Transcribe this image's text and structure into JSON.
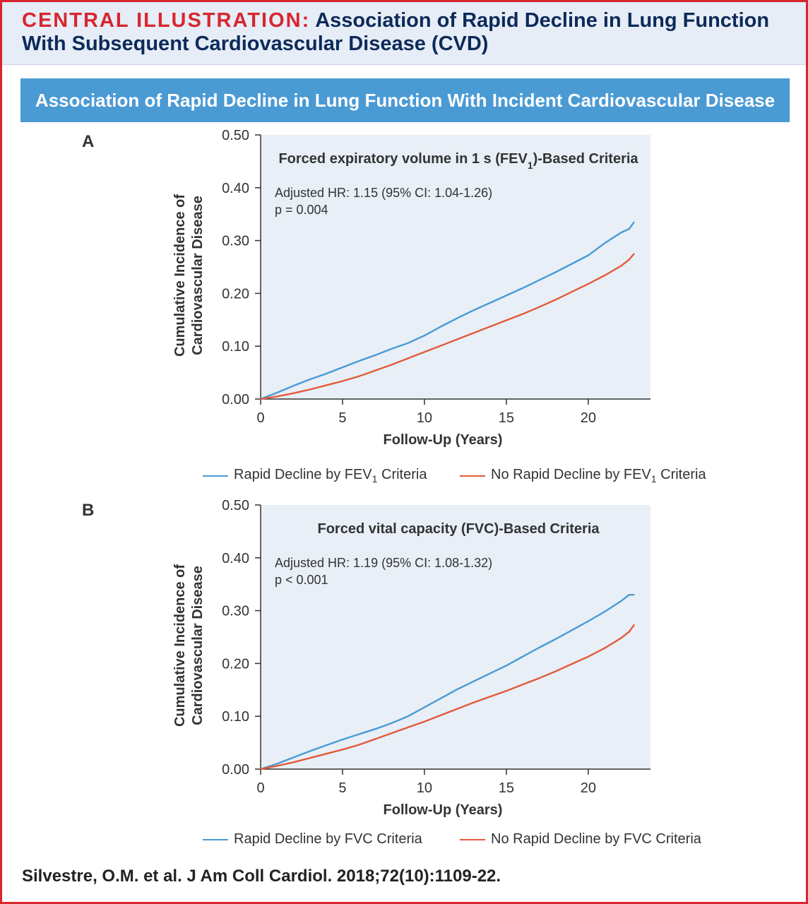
{
  "header": {
    "label": "CENTRAL ILLUSTRATION:",
    "title": "Association of Rapid Decline in Lung Function With Subsequent Cardiovascular Disease (CVD)"
  },
  "banner": "Association of Rapid Decline in Lung Function With Incident Cardiovascular Disease",
  "citation": "Silvestre, O.M. et al. J Am Coll Cardiol. 2018;72(10):1109-22.",
  "colors": {
    "rapid": "#4a9ad4",
    "noRapid": "#e35a3a",
    "plotBg": "#e8eff7"
  },
  "chart_data": [
    {
      "panel": "A",
      "type": "line",
      "title": "Forced expiratory volume in 1 s (FEV1)-Based Criteria",
      "annotation": [
        "Adjusted HR: 1.15 (95% CI: 1.04-1.26)",
        "p = 0.004"
      ],
      "xlabel": "Follow-Up (Years)",
      "ylabel": [
        "Cumulative Incidence of",
        "Cardiovascular Disease"
      ],
      "xlim": [
        0,
        23.8
      ],
      "ylim": [
        0,
        0.5
      ],
      "xticks": [
        0,
        5,
        10,
        15,
        20
      ],
      "yticks": [
        "0.00",
        "0.10",
        "0.20",
        "0.30",
        "0.40",
        "0.50"
      ],
      "legend_position": "bottom",
      "series": [
        {
          "name": "Rapid Decline by FEV1 Criteria",
          "x": [
            0,
            1,
            2,
            3,
            4,
            5,
            6,
            7,
            8,
            9,
            10,
            11,
            12,
            13,
            14,
            15,
            16,
            17,
            18,
            19,
            20,
            21,
            22,
            22.5,
            22.8
          ],
          "y": [
            0,
            0.012,
            0.025,
            0.037,
            0.048,
            0.06,
            0.072,
            0.083,
            0.095,
            0.106,
            0.12,
            0.137,
            0.153,
            0.168,
            0.182,
            0.196,
            0.21,
            0.225,
            0.24,
            0.256,
            0.272,
            0.295,
            0.315,
            0.322,
            0.335
          ]
        },
        {
          "name": "No Rapid Decline by FEV1 Criteria",
          "x": [
            0,
            1,
            2,
            3,
            4,
            5,
            6,
            7,
            8,
            9,
            10,
            11,
            12,
            13,
            14,
            15,
            16,
            17,
            18,
            19,
            20,
            21,
            22,
            22.5,
            22.8
          ],
          "y": [
            0,
            0.005,
            0.011,
            0.018,
            0.026,
            0.034,
            0.043,
            0.054,
            0.065,
            0.077,
            0.089,
            0.101,
            0.113,
            0.125,
            0.137,
            0.149,
            0.161,
            0.174,
            0.188,
            0.203,
            0.218,
            0.234,
            0.252,
            0.264,
            0.275
          ]
        }
      ]
    },
    {
      "panel": "B",
      "type": "line",
      "title": "Forced vital capacity (FVC)-Based Criteria",
      "annotation": [
        "Adjusted HR: 1.19 (95% CI: 1.08-1.32)",
        "p < 0.001"
      ],
      "xlabel": "Follow-Up (Years)",
      "ylabel": [
        "Cumulative Incidence of",
        "Cardiovascular Disease"
      ],
      "xlim": [
        0,
        23.8
      ],
      "ylim": [
        0,
        0.5
      ],
      "xticks": [
        0,
        5,
        10,
        15,
        20
      ],
      "yticks": [
        "0.00",
        "0.10",
        "0.20",
        "0.30",
        "0.40",
        "0.50"
      ],
      "legend_position": "bottom",
      "series": [
        {
          "name": "Rapid Decline by FVC Criteria",
          "x": [
            0,
            1,
            2,
            3,
            4,
            5,
            6,
            7,
            8,
            9,
            10,
            11,
            12,
            13,
            14,
            15,
            16,
            17,
            18,
            19,
            20,
            21,
            22,
            22.5,
            22.8
          ],
          "y": [
            0,
            0.01,
            0.022,
            0.034,
            0.045,
            0.056,
            0.066,
            0.076,
            0.087,
            0.1,
            0.117,
            0.134,
            0.151,
            0.166,
            0.181,
            0.196,
            0.213,
            0.23,
            0.246,
            0.263,
            0.28,
            0.298,
            0.318,
            0.33,
            0.33
          ]
        },
        {
          "name": "No Rapid Decline by FVC Criteria",
          "x": [
            0,
            1,
            2,
            3,
            4,
            5,
            6,
            7,
            8,
            9,
            10,
            11,
            12,
            13,
            14,
            15,
            16,
            17,
            18,
            19,
            20,
            21,
            22,
            22.5,
            22.8
          ],
          "y": [
            0,
            0.006,
            0.013,
            0.021,
            0.029,
            0.037,
            0.046,
            0.057,
            0.068,
            0.079,
            0.09,
            0.102,
            0.114,
            0.126,
            0.137,
            0.148,
            0.16,
            0.172,
            0.185,
            0.199,
            0.213,
            0.229,
            0.248,
            0.26,
            0.273
          ]
        }
      ]
    }
  ]
}
